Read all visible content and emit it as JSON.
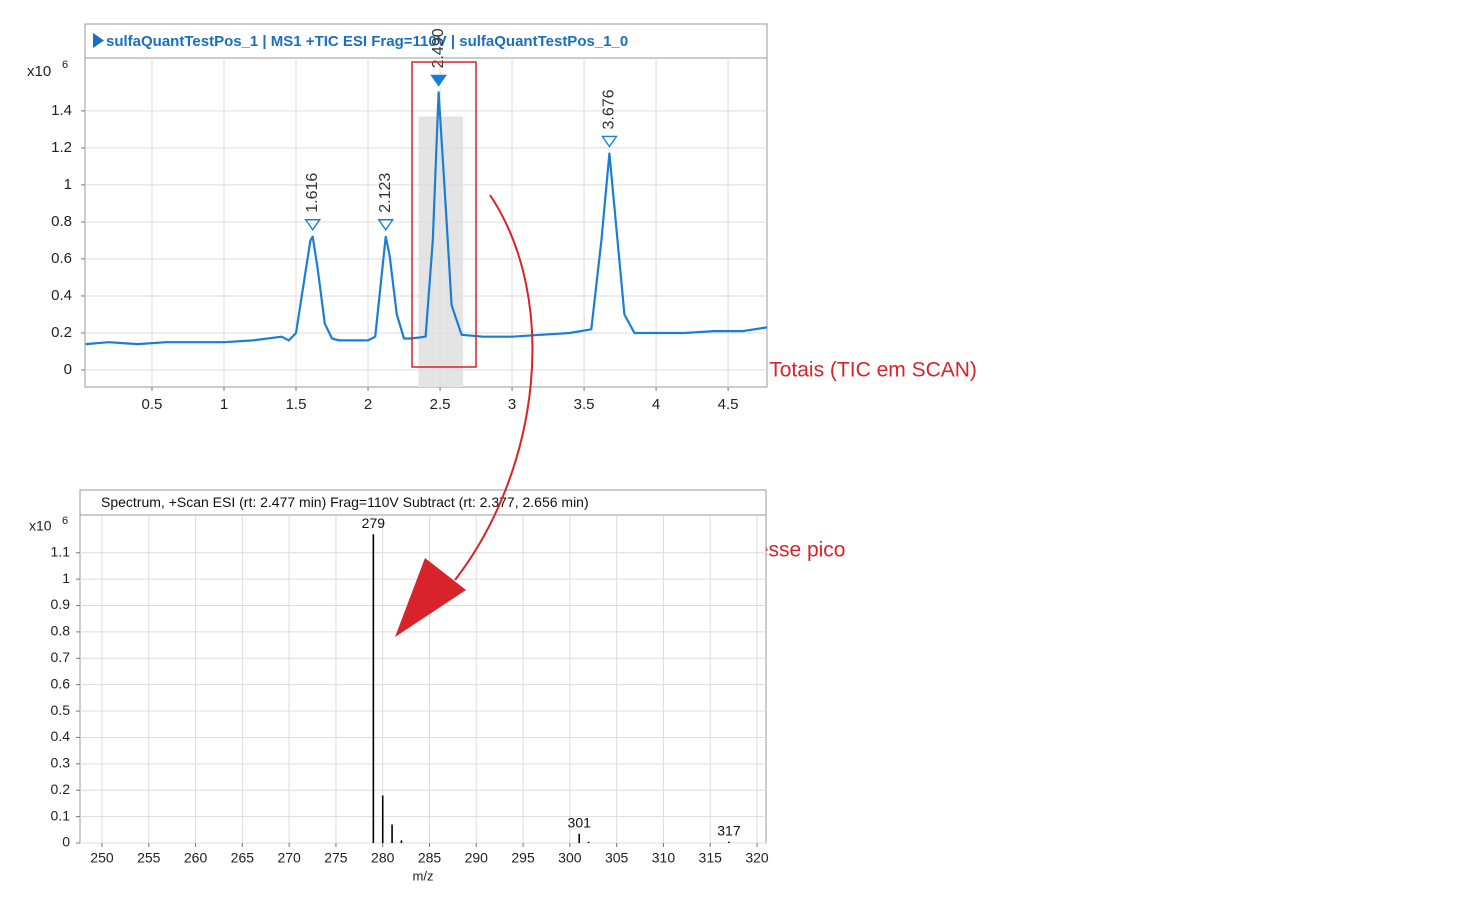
{
  "chart_data": [
    {
      "type": "line",
      "title": "sulfaQuantTestPos_1 | MS1 +TIC ESI Frag=110V | sulfaQuantTestPos_1_0",
      "y_multiplier": "x10",
      "y_exponent": "6",
      "x": [
        0.04,
        0.2,
        0.4,
        0.6,
        0.8,
        1.0,
        1.2,
        1.4,
        1.45,
        1.5,
        1.55,
        1.6,
        1.616,
        1.65,
        1.7,
        1.75,
        1.8,
        2.0,
        2.05,
        2.1,
        2.123,
        2.15,
        2.2,
        2.25,
        2.3,
        2.4,
        2.45,
        2.49,
        2.53,
        2.58,
        2.65,
        2.8,
        3.0,
        3.2,
        3.4,
        3.55,
        3.62,
        3.676,
        3.72,
        3.78,
        3.85,
        4.0,
        4.2,
        4.4,
        4.6,
        4.77
      ],
      "series": [
        {
          "color": "#1a7fd4",
          "values": [
            0.14,
            0.15,
            0.14,
            0.15,
            0.15,
            0.15,
            0.16,
            0.18,
            0.16,
            0.2,
            0.45,
            0.7,
            0.72,
            0.55,
            0.25,
            0.17,
            0.16,
            0.16,
            0.18,
            0.55,
            0.72,
            0.62,
            0.3,
            0.17,
            0.17,
            0.18,
            0.7,
            1.5,
            1.0,
            0.35,
            0.19,
            0.18,
            0.18,
            0.19,
            0.2,
            0.22,
            0.7,
            1.17,
            0.8,
            0.3,
            0.2,
            0.2,
            0.2,
            0.21,
            0.21,
            0.23
          ]
        }
      ],
      "peaks": {
        "x": [
          1.616,
          2.123,
          2.49,
          3.676
        ],
        "labels": [
          "1.616",
          "2.123",
          "2.490",
          "3.676"
        ],
        "y": [
          0.72,
          0.72,
          1.5,
          1.17
        ]
      },
      "shaded_range": [
        2.35,
        2.66
      ],
      "xlim": [
        0.035,
        4.77
      ],
      "ylim": [
        -0.092,
        1.686
      ],
      "xticks": [
        0.5,
        1,
        1.5,
        2,
        2.5,
        3,
        3.5,
        4,
        4.5
      ],
      "yticks": [
        0,
        0.2,
        0.4,
        0.6,
        0.8,
        1,
        1.2,
        1.4
      ],
      "grid": true
    },
    {
      "type": "bar",
      "title": "Spectrum, +Scan ESI (rt: 2.477 min) Frag=110V Subtract (rt: 2.377, 2.656 min)",
      "y_multiplier": "x10",
      "y_exponent": "6",
      "x_label": "m/z",
      "x": [
        279,
        280,
        281,
        282,
        301,
        302,
        317
      ],
      "series": [
        {
          "color": "#000000",
          "values": [
            1.17,
            0.18,
            0.07,
            0.01,
            0.035,
            0.005,
            0.005
          ]
        }
      ],
      "peak_labels": [
        "279",
        null,
        null,
        null,
        "301",
        null,
        "317"
      ],
      "xlim": [
        247.65,
        320.96
      ],
      "ylim": [
        0,
        1.243
      ],
      "xticks": [
        250,
        255,
        260,
        265,
        270,
        275,
        280,
        285,
        290,
        295,
        300,
        305,
        310,
        315,
        320
      ],
      "yticks": [
        0,
        0.1,
        0.2,
        0.3,
        0.4,
        0.5,
        0.6,
        0.7,
        0.8,
        0.9,
        1,
        1.1
      ],
      "grid": true
    }
  ],
  "annotations": [
    "Cromatograma de Íons Totais (TIC em SCAN)",
    "Espectro de massas desse pico"
  ]
}
